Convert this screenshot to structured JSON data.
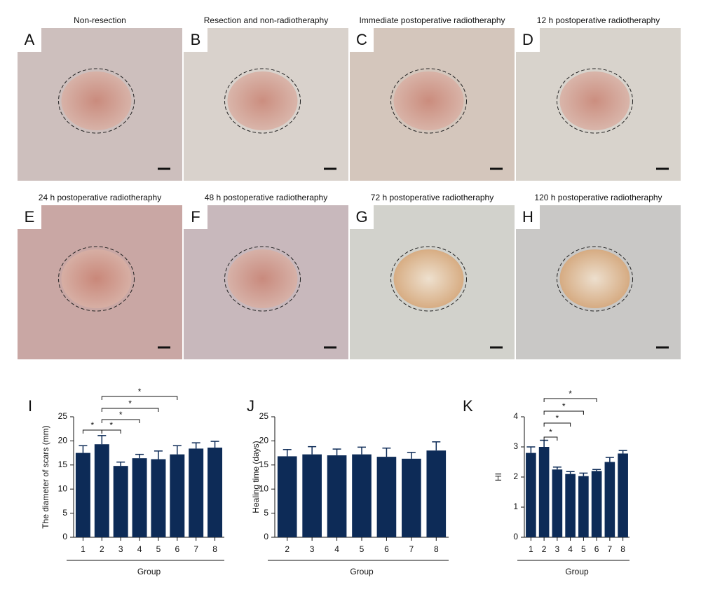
{
  "panels": [
    {
      "letter": "A",
      "title": "Non-resection"
    },
    {
      "letter": "B",
      "title": "Resection and non-radiotheraphy"
    },
    {
      "letter": "C",
      "title": "Immediate postoperative radiotheraphy"
    },
    {
      "letter": "D",
      "title": "12 h postoperative radiotheraphy"
    },
    {
      "letter": "E",
      "title": "24 h postoperative radiotheraphy"
    },
    {
      "letter": "F",
      "title": "48 h postoperative radiotheraphy"
    },
    {
      "letter": "G",
      "title": "72 h postoperative radiotheraphy"
    },
    {
      "letter": "H",
      "title": "120 h postoperative radiotheraphy"
    }
  ],
  "chart_data": [
    {
      "type": "bar",
      "panel_label": "I",
      "y_label": "The diameter of scars (mm)",
      "x_label": "Group",
      "categories": [
        "1",
        "2",
        "3",
        "4",
        "5",
        "6",
        "7",
        "8"
      ],
      "values": [
        17.5,
        19.3,
        14.8,
        16.4,
        16.2,
        17.2,
        18.4,
        18.6
      ],
      "errors": [
        1.5,
        1.8,
        0.8,
        0.8,
        1.7,
        1.8,
        1.2,
        1.3
      ],
      "color": "#0d2b57",
      "ylim": [
        0,
        25
      ],
      "yticks": [
        0,
        5,
        10,
        15,
        20,
        25
      ],
      "comparisons": [
        {
          "from": "1",
          "to": "2",
          "label": "*"
        },
        {
          "from": "2",
          "to": "3",
          "label": "*"
        },
        {
          "from": "2",
          "to": "4",
          "label": "*"
        },
        {
          "from": "2",
          "to": "5",
          "label": "*"
        },
        {
          "from": "2",
          "to": "6",
          "label": "*"
        }
      ]
    },
    {
      "type": "bar",
      "panel_label": "J",
      "y_label": "Healing time (days)",
      "x_label": "Group",
      "categories": [
        "2",
        "3",
        "4",
        "5",
        "6",
        "7",
        "8"
      ],
      "values": [
        16.8,
        17.2,
        17.0,
        17.2,
        16.7,
        16.3,
        18.0
      ],
      "errors": [
        1.4,
        1.6,
        1.3,
        1.5,
        1.8,
        1.3,
        1.8
      ],
      "color": "#0d2b57",
      "ylim": [
        0,
        25
      ],
      "yticks": [
        0,
        5,
        10,
        15,
        20,
        25
      ],
      "comparisons": []
    },
    {
      "type": "bar",
      "panel_label": "K",
      "y_label": "HI",
      "x_label": "Group",
      "categories": [
        "1",
        "2",
        "3",
        "4",
        "5",
        "6",
        "7",
        "8"
      ],
      "values": [
        2.8,
        3.0,
        2.25,
        2.1,
        2.03,
        2.2,
        2.5,
        2.78
      ],
      "errors": [
        0.2,
        0.22,
        0.08,
        0.08,
        0.1,
        0.05,
        0.15,
        0.1
      ],
      "color": "#0d2b57",
      "ylim": [
        0,
        4
      ],
      "yticks": [
        0,
        1,
        2,
        3,
        4
      ],
      "comparisons": [
        {
          "from": "2",
          "to": "3",
          "label": "*"
        },
        {
          "from": "2",
          "to": "4",
          "label": "*"
        },
        {
          "from": "2",
          "to": "5",
          "label": "*"
        },
        {
          "from": "2",
          "to": "6",
          "label": "*"
        }
      ]
    }
  ]
}
